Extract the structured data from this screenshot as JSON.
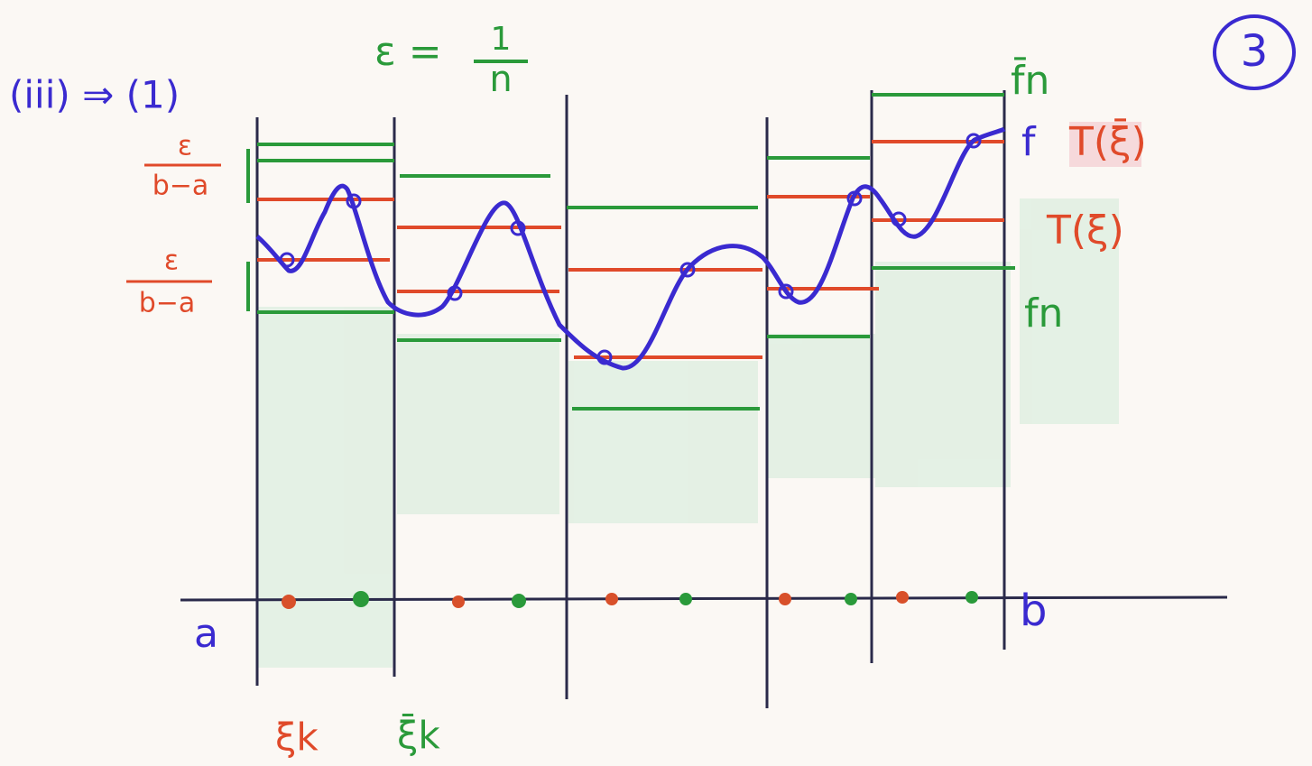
{
  "header": {
    "label": "(iii) ⇒ (1)",
    "page_number": "3"
  },
  "epsilon": {
    "lhs": "ε =",
    "numerator": "1",
    "denominator": "n"
  },
  "left_labels": [
    {
      "numerator": "ε",
      "denominator": "b−a"
    },
    {
      "numerator": "ε",
      "denominator": "b−a"
    }
  ],
  "right_labels": {
    "upper_step": "f̄n",
    "function": "f",
    "upper_sum": "T(ξ̄)",
    "lower_sum": "T(ξ)",
    "lower_step": "fn"
  },
  "axis": {
    "start": "a",
    "end": "b"
  },
  "points": {
    "lower": "ξk",
    "upper": "ξ̄k"
  }
}
